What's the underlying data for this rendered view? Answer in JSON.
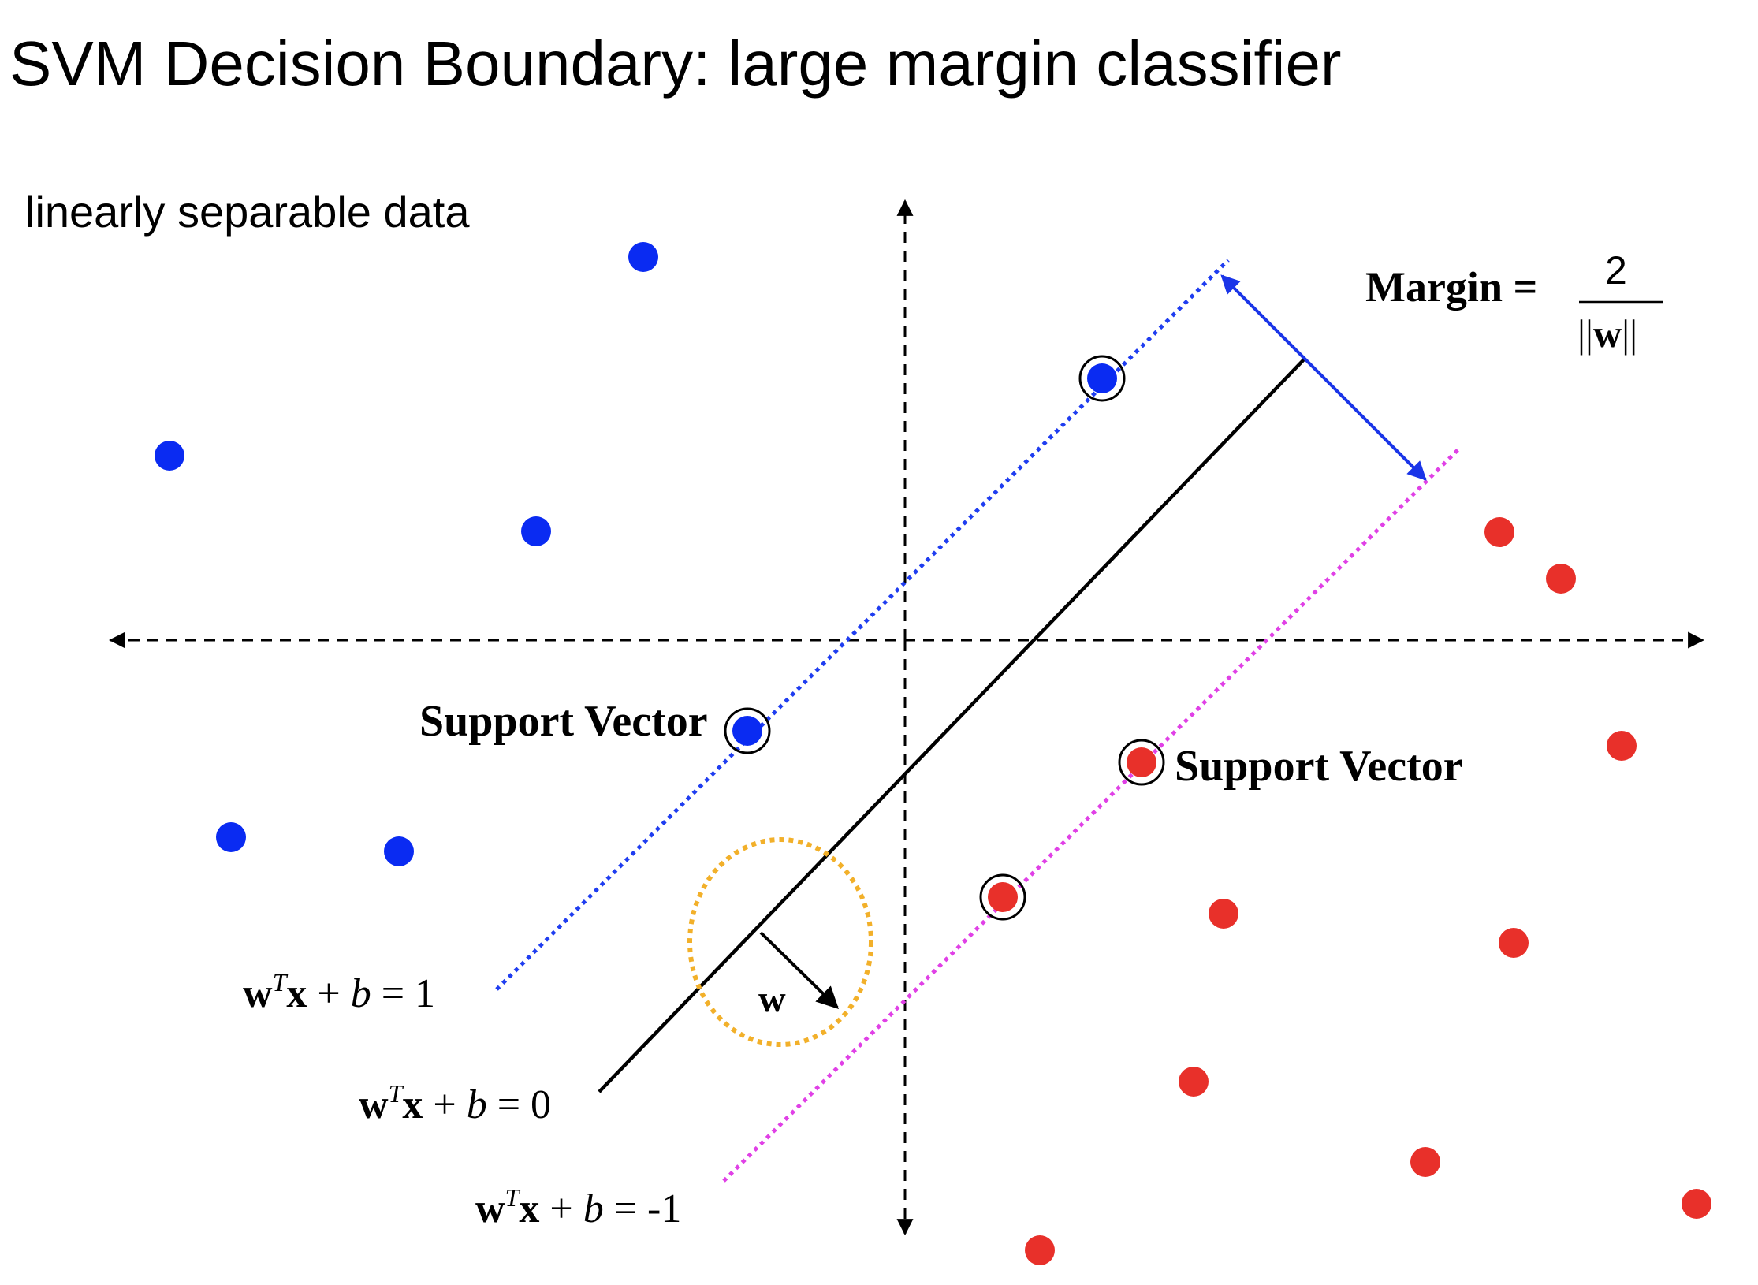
{
  "title": "SVM Decision Boundary: large margin classifier",
  "subtitle": "linearly separable data",
  "labels": {
    "support_vector_left": "Support Vector",
    "support_vector_right": "Support Vector",
    "margin_prefix": "Margin =",
    "margin_numerator": "2",
    "margin_denominator_bars_left": "||",
    "margin_denominator_w": "w",
    "margin_denominator_bars_right": "||",
    "w_vector": "w"
  },
  "equations": {
    "positive": {
      "w": "w",
      "sup": "T",
      "x": "x",
      "rest1": " + ",
      "b": "b",
      "rest2": " = 1"
    },
    "zero": {
      "w": "w",
      "sup": "T",
      "x": "x",
      "rest1": " + ",
      "b": "b",
      "rest2": " = 0"
    },
    "negative": {
      "w": "w",
      "sup": "T",
      "x": "x",
      "rest1": " + ",
      "b": "b",
      "rest2": " = -1"
    }
  },
  "colors": {
    "positive_class": "#0a2bf2",
    "negative_class": "#e8302a",
    "positive_margin_line": "#1f3df0",
    "negative_margin_line": "#e040e6",
    "margin_arrow": "#1a35e8",
    "highlight_circle": "#f2b02a",
    "axis": "#000000"
  },
  "icons": {
    "support_vector_marker": "ring-circle",
    "axis_arrow": "arrowhead"
  }
}
